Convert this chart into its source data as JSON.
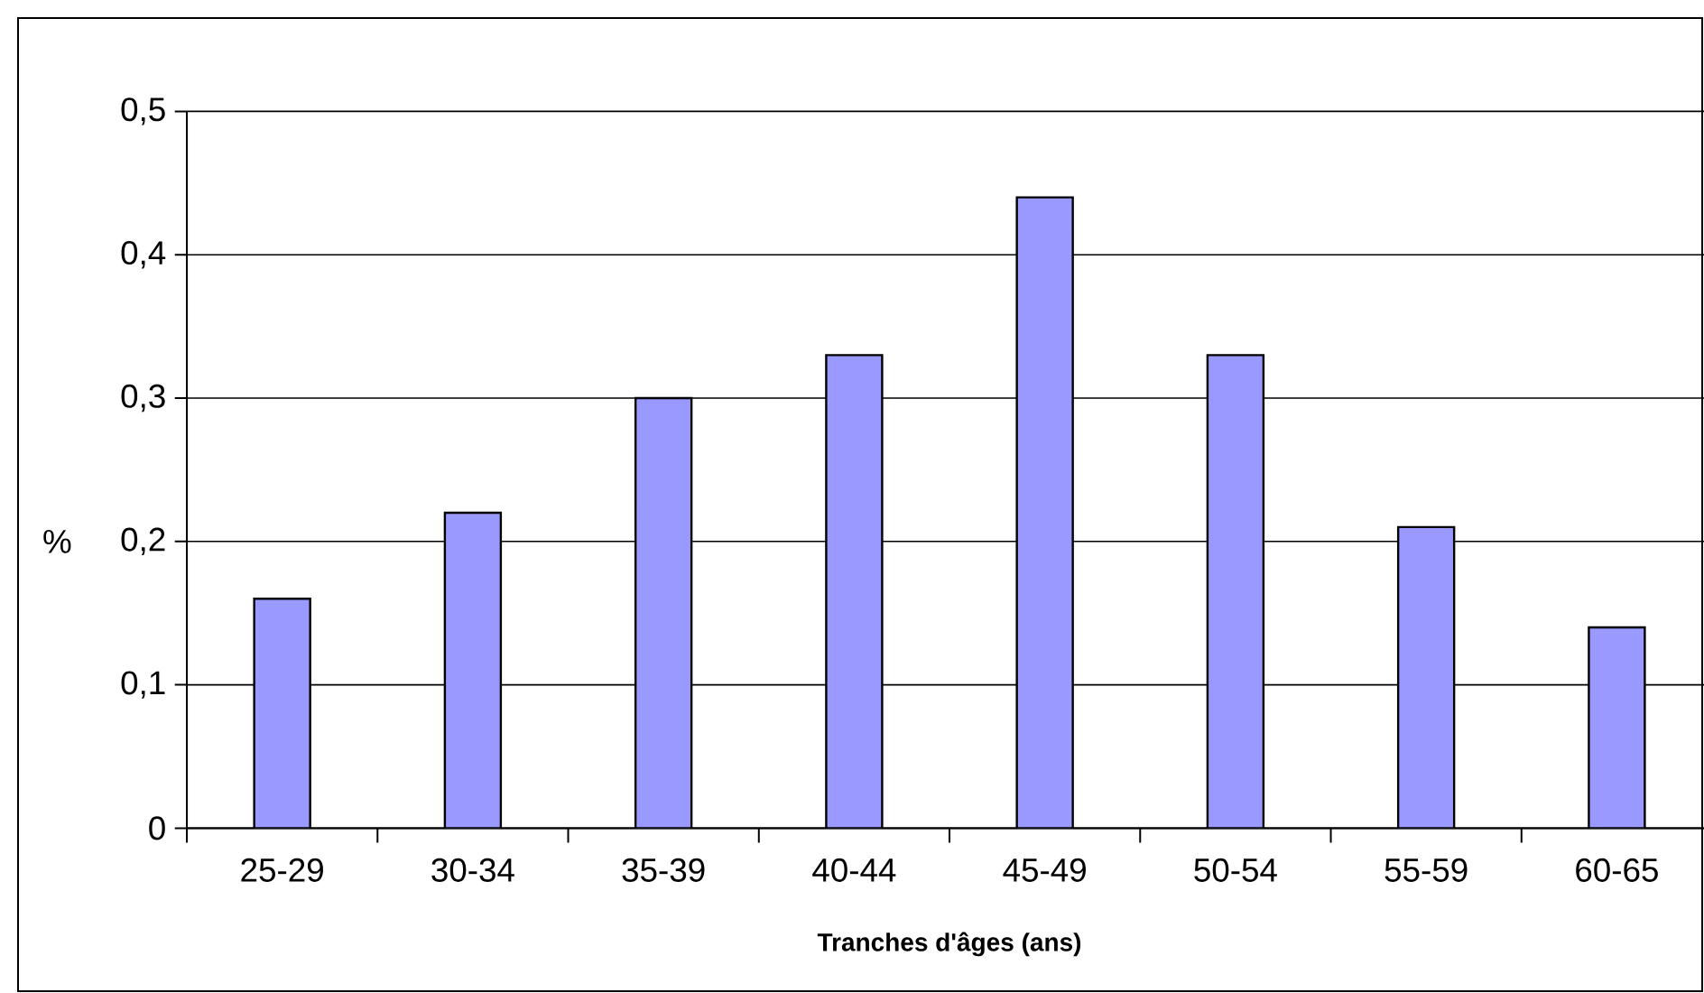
{
  "chart_data": {
    "type": "bar",
    "xlabel": "Tranches d'âges (ans)",
    "ylabel": "%",
    "categories": [
      "25-29",
      "30-34",
      "35-39",
      "40-44",
      "45-49",
      "50-54",
      "55-59",
      "60-65"
    ],
    "values": [
      0.16,
      0.22,
      0.3,
      0.33,
      0.44,
      0.33,
      0.21,
      0.14
    ],
    "color": "#9999ff",
    "ylim": [
      0,
      0.5
    ],
    "yticks": [
      0,
      {
        "value": 0.1,
        "label": "0,1"
      },
      {
        "value": 0.2,
        "label": "0,2"
      },
      {
        "value": 0.3,
        "label": "0,3"
      },
      {
        "value": 0.4,
        "label": "0,4"
      },
      {
        "value": 0.5,
        "label": "0,5"
      }
    ],
    "grid": "y"
  }
}
